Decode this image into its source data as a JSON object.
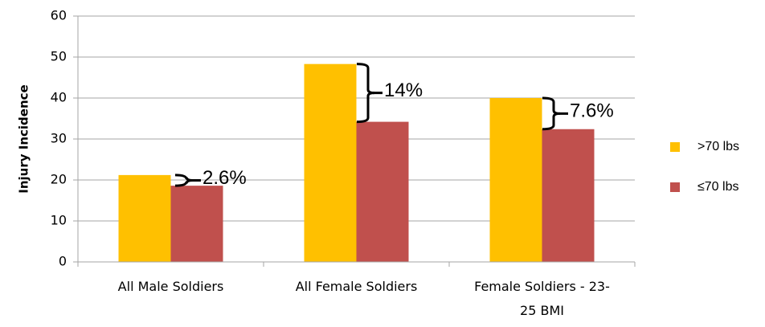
{
  "chart_data": {
    "type": "bar",
    "ylabel": "Injury Incidence",
    "categories": [
      "All Male Soldiers",
      "All Female Soldiers",
      "Female Soldiers - 23-25 BMI"
    ],
    "series": [
      {
        "name": ">70 lbs",
        "color": "#FFC000",
        "values": [
          21.2,
          48.3,
          40
        ]
      },
      {
        "name": "≤70 lbs",
        "color": "#C0504D",
        "values": [
          18.6,
          34.2,
          32.4
        ]
      }
    ],
    "annotations": [
      "2.6%",
      "14%",
      "7.6%"
    ],
    "ylim": [
      0,
      60
    ],
    "yticks": [
      0,
      10,
      20,
      30,
      40,
      50,
      60
    ],
    "grid": true,
    "legend": "right"
  }
}
